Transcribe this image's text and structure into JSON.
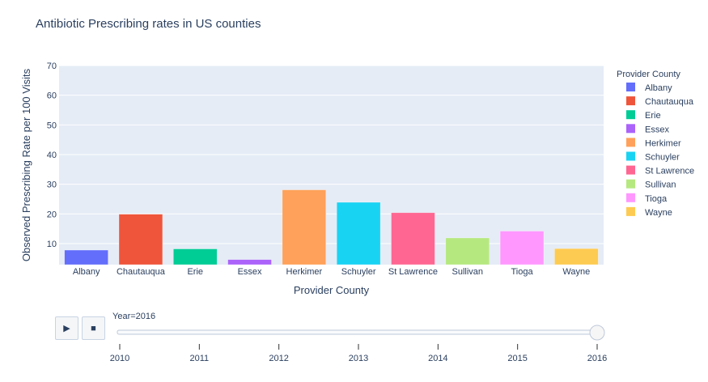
{
  "title": "Antibiotic Prescribing rates in US counties",
  "chart_data": {
    "type": "bar",
    "title": "Antibiotic Prescribing rates in US counties",
    "xlabel": "Provider County",
    "ylabel": "Observed Prescribing Rate per 100 Visits",
    "ylim": [
      2.9,
      70
    ],
    "yticks": [
      10,
      20,
      30,
      40,
      50,
      60,
      70
    ],
    "categories": [
      "Albany",
      "Chautauqua",
      "Erie",
      "Essex",
      "Herkimer",
      "Schuyler",
      "St Lawrence",
      "Sullivan",
      "Tioga",
      "Wayne"
    ],
    "values": [
      7.8,
      19.9,
      8.2,
      4.6,
      28.1,
      23.9,
      20.4,
      11.9,
      14.2,
      8.3
    ],
    "colors": [
      "#636efa",
      "#EF553B",
      "#00cc96",
      "#ab63fa",
      "#FFA15A",
      "#19d3f3",
      "#FF6692",
      "#B6E880",
      "#FF97FF",
      "#FECB52"
    ],
    "legend_title": "Provider County",
    "legend_position": "right",
    "grid": true
  },
  "slider": {
    "current_label": "Year=2016",
    "steps": [
      "2010",
      "2011",
      "2012",
      "2013",
      "2014",
      "2015",
      "2016"
    ],
    "active_index": 6
  },
  "buttons": {
    "play": "▶",
    "stop": "■"
  }
}
